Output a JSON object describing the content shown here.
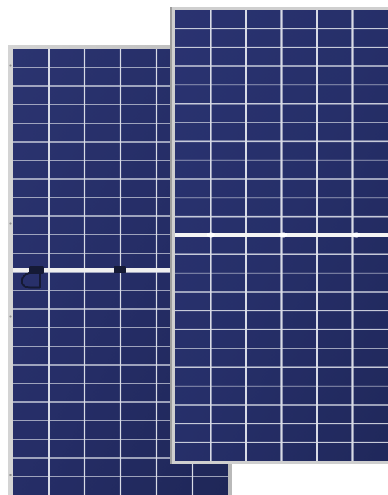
{
  "scene": {
    "subject": "solar-panels",
    "panels": [
      {
        "id": "back-panel",
        "view": "rear",
        "cell_columns": 6,
        "cell_rows": 24,
        "has_junction_box": true
      },
      {
        "id": "front-panel",
        "view": "front",
        "cell_columns": 6,
        "cell_rows": 24,
        "has_junction_box": false
      }
    ],
    "colors": {
      "cell_blue": "#27306a",
      "cell_blue_dark": "#1d2455",
      "grid_line": "#d8dbe6",
      "frame": "#c9c9c9",
      "frame_shadow": "#9a9a9a",
      "divider": "#f2f2f2",
      "junction_box": "#151a35"
    }
  }
}
